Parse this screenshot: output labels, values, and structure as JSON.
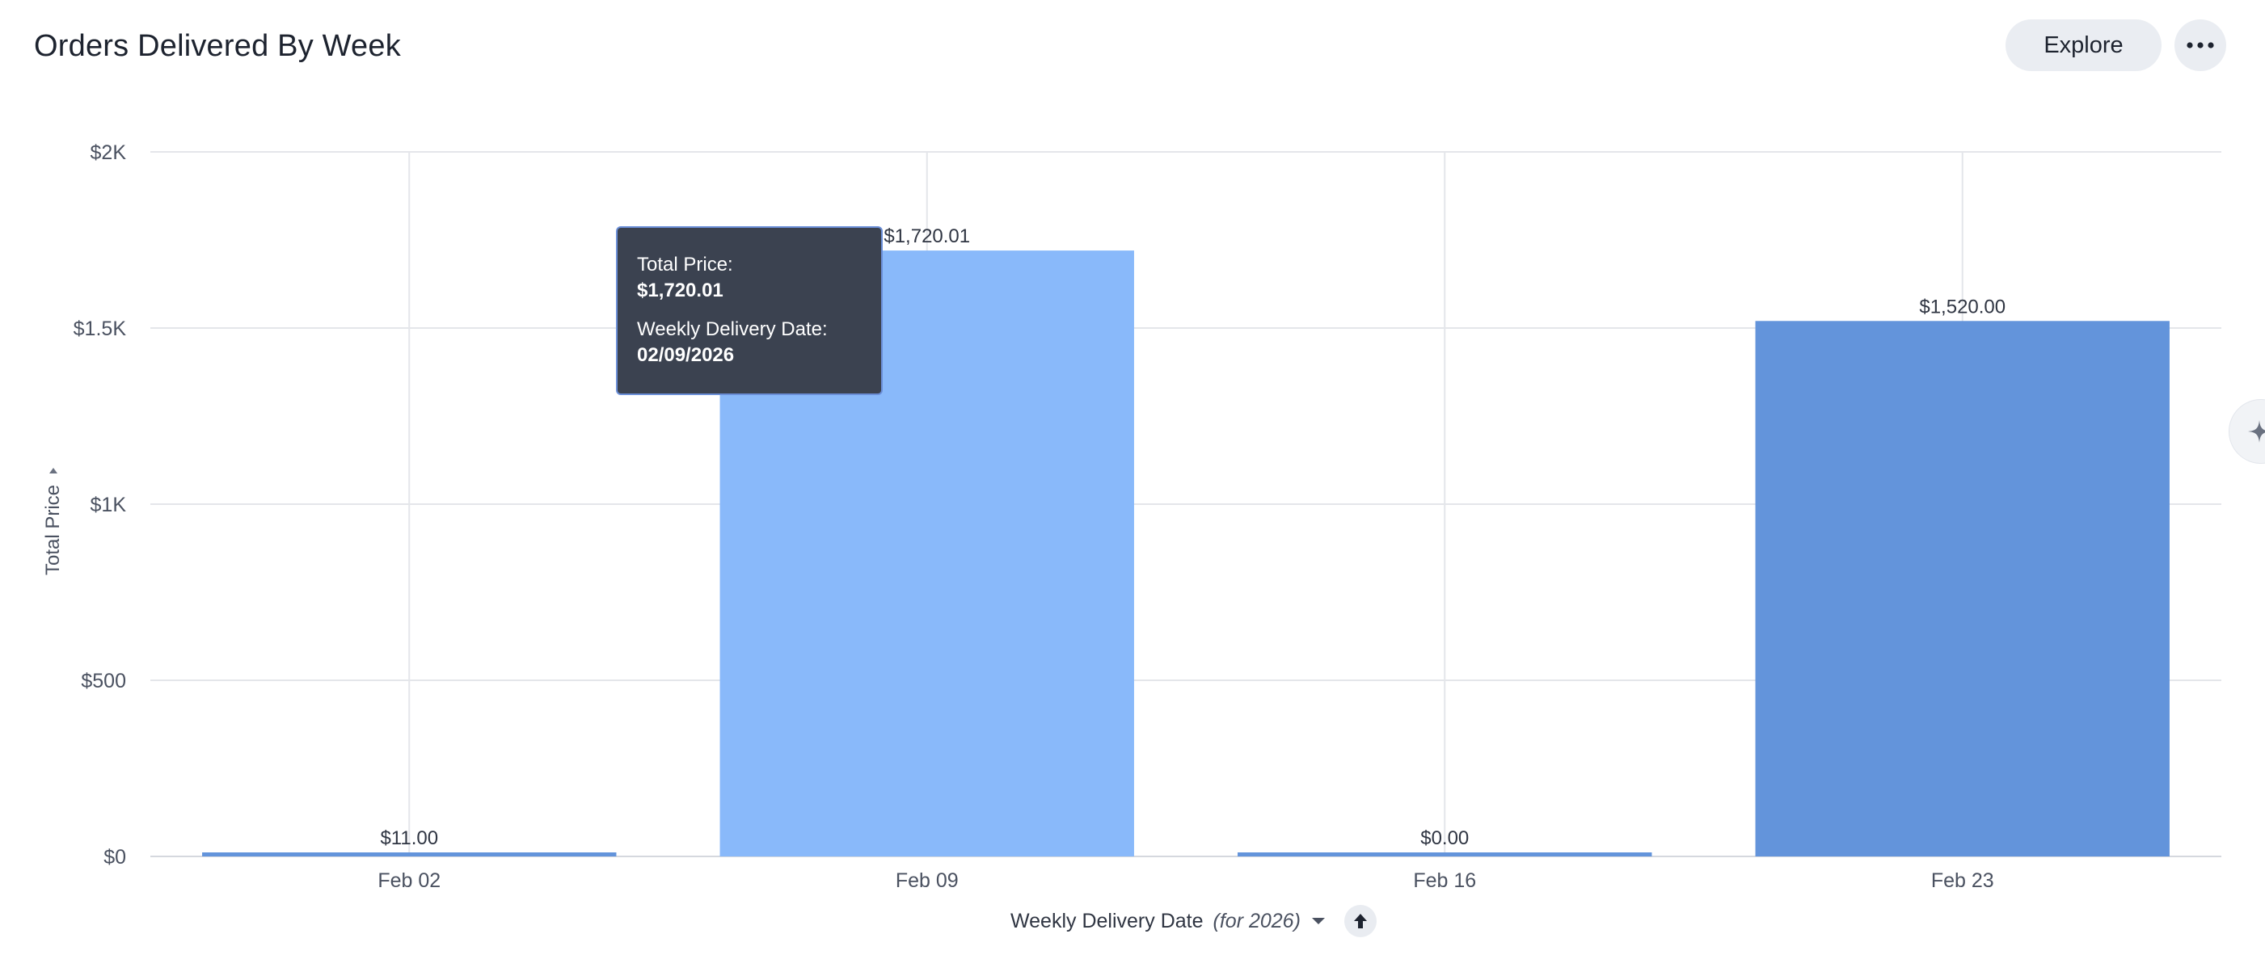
{
  "header": {
    "title": "Orders Delivered By Week",
    "explore_label": "Explore",
    "more_icon": "more-horizontal-icon"
  },
  "chart_data": {
    "type": "bar",
    "title": "Orders Delivered By Week",
    "categories": [
      "Feb 02",
      "Feb 09",
      "Feb 16",
      "Feb 23"
    ],
    "values": [
      11.0,
      1720.01,
      0.0,
      1520.0
    ],
    "data_labels": [
      "$11.00",
      "$1,720.01",
      "$0.00",
      "$1,520.00"
    ],
    "xlabel": "Weekly Delivery Date",
    "xlabel_qualifier": "(for 2026)",
    "ylabel": "Total Price",
    "ylim": [
      0,
      2000
    ],
    "yticks": [
      0,
      500,
      1000,
      1500,
      2000
    ],
    "ytick_labels": [
      "$0",
      "$500",
      "$1K",
      "$1.5K",
      "$2K"
    ],
    "grid": true,
    "highlighted_index": 1,
    "colors": {
      "bar": "#6394db",
      "bar_highlight": "#89b9fa",
      "grid": "#e4e6ea"
    }
  },
  "tooltip": {
    "label1": "Total Price:",
    "value1": "$1,720.01",
    "label2": "Weekly Delivery Date:",
    "value2": "02/09/2026"
  }
}
